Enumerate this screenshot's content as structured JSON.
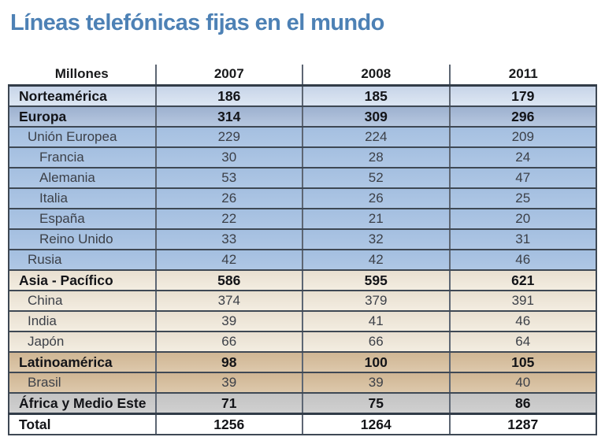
{
  "title": "Líneas telefónicas fijas en el mundo",
  "colors": {
    "title_blue": "#4d81b5",
    "row_lightblue": "#cfdcee",
    "row_darkblue": "#a8bcd7",
    "row_blue": "#a9c3e3",
    "row_cream": "#eee7d9",
    "row_tan": "#d6bf9f",
    "row_gray": "#c9c9c9",
    "line_dark": "#3e4854"
  },
  "chart_data": {
    "type": "table",
    "title": "Líneas telefónicas fijas en el mundo",
    "unit_label": "Millones",
    "columns": [
      "Millones",
      "2007",
      "2008",
      "2011"
    ],
    "rows": [
      {
        "label": "Norteamérica",
        "values": [
          186,
          185,
          179
        ],
        "bold": true,
        "indent": 0,
        "style": "lightblue"
      },
      {
        "label": "Europa",
        "values": [
          314,
          309,
          296
        ],
        "bold": true,
        "indent": 0,
        "style": "darkblue"
      },
      {
        "label": "Unión Europea",
        "values": [
          229,
          224,
          209
        ],
        "bold": false,
        "indent": 1,
        "style": "blue"
      },
      {
        "label": "Francia",
        "values": [
          30,
          28,
          24
        ],
        "bold": false,
        "indent": 2,
        "style": "blue"
      },
      {
        "label": "Alemania",
        "values": [
          53,
          52,
          47
        ],
        "bold": false,
        "indent": 2,
        "style": "blue"
      },
      {
        "label": "Italia",
        "values": [
          26,
          26,
          25
        ],
        "bold": false,
        "indent": 2,
        "style": "blue"
      },
      {
        "label": "España",
        "values": [
          22,
          21,
          20
        ],
        "bold": false,
        "indent": 2,
        "style": "blue"
      },
      {
        "label": "Reino Unido",
        "values": [
          33,
          32,
          31
        ],
        "bold": false,
        "indent": 2,
        "style": "blue"
      },
      {
        "label": "Rusia",
        "values": [
          42,
          42,
          46
        ],
        "bold": false,
        "indent": 1,
        "style": "blue"
      },
      {
        "label": "Asia - Pacífico",
        "values": [
          586,
          595,
          621
        ],
        "bold": true,
        "indent": 0,
        "style": "cream"
      },
      {
        "label": "China",
        "values": [
          374,
          379,
          391
        ],
        "bold": false,
        "indent": 1,
        "style": "cream"
      },
      {
        "label": "India",
        "values": [
          39,
          41,
          46
        ],
        "bold": false,
        "indent": 1,
        "style": "cream"
      },
      {
        "label": "Japón",
        "values": [
          66,
          66,
          64
        ],
        "bold": false,
        "indent": 1,
        "style": "cream"
      },
      {
        "label": "Latinoamérica",
        "values": [
          98,
          100,
          105
        ],
        "bold": true,
        "indent": 0,
        "style": "tan"
      },
      {
        "label": "Brasil",
        "values": [
          39,
          39,
          40
        ],
        "bold": false,
        "indent": 1,
        "style": "tan"
      },
      {
        "label": "África y Medio Este",
        "values": [
          71,
          75,
          86
        ],
        "bold": true,
        "indent": 0,
        "style": "gray"
      },
      {
        "label": "Total",
        "values": [
          1256,
          1264,
          1287
        ],
        "bold": true,
        "indent": 0,
        "style": "white"
      }
    ]
  }
}
